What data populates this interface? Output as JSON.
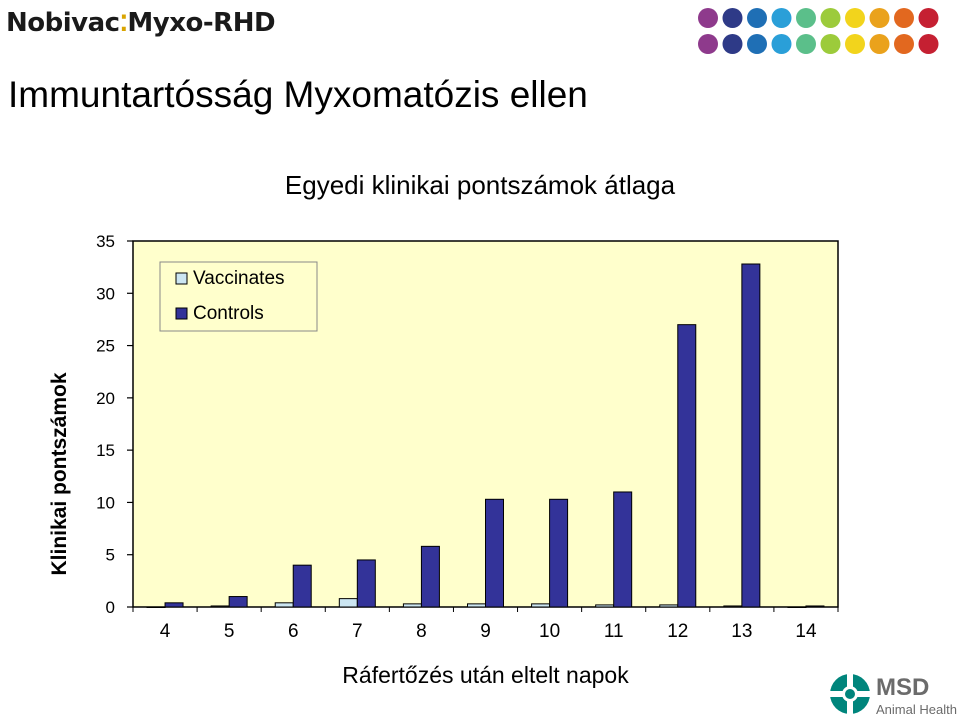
{
  "header": {
    "brand_left": "Nobivac",
    "brand_right": "Myxo-RHD",
    "title": "Immuntartósság Myxomatózis ellen"
  },
  "decoration": {
    "dot_colors": [
      "#8e3a8c",
      "#2e3a87",
      "#1f6fb5",
      "#2a9fd8",
      "#5bbf8a",
      "#9ccb3b",
      "#f2d41c",
      "#eaa21c",
      "#e2681f",
      "#c52032"
    ]
  },
  "footer": {
    "logo_text": "MSD",
    "logo_subtext": "Animal Health",
    "logo_color": "#00857c"
  },
  "chart_data": {
    "type": "bar",
    "title": "Egyedi klinikai pontszámok átlaga",
    "xlabel": "Ráfertőzés után eltelt napok",
    "ylabel": "Klinikai pontszámok",
    "categories": [
      "4",
      "5",
      "6",
      "7",
      "8",
      "9",
      "10",
      "11",
      "12",
      "13",
      "14"
    ],
    "yticks": [
      "0",
      "5",
      "10",
      "15",
      "20",
      "25",
      "30",
      "35"
    ],
    "ylim": [
      0,
      35
    ],
    "grid": false,
    "legend_position": "top-left",
    "plot_background": "#ffffcc",
    "series": [
      {
        "name": "Vaccinates",
        "color": "#cce6f2",
        "values": [
          0,
          0.1,
          0.4,
          0.8,
          0.3,
          0.3,
          0.3,
          0.2,
          0.2,
          0.1,
          0
        ]
      },
      {
        "name": "Controls",
        "color": "#333399",
        "values": [
          0.4,
          1.0,
          4.0,
          4.5,
          5.8,
          10.3,
          10.3,
          11.0,
          27.0,
          32.8,
          0.1
        ]
      }
    ]
  }
}
